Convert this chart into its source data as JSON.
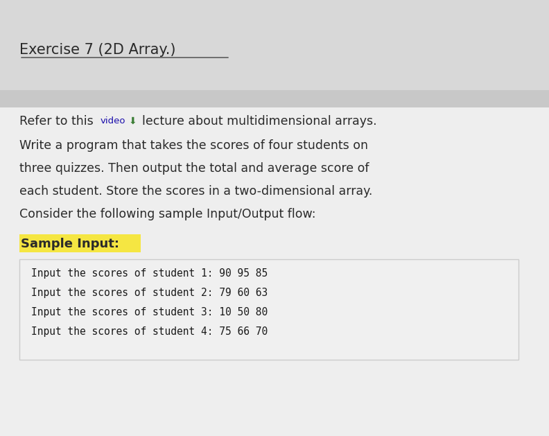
{
  "title": "Exercise 7 (2D Array.)",
  "bg_top_color": "#d8d8d8",
  "bg_main_color": "#e8e8e8",
  "content_bg": "#f2f2f2",
  "video_color": "#1a0dab",
  "icon_color": "#3a7d34",
  "sample_input_label": "Sample Input:",
  "sample_input_bg": "#f5e642",
  "code_lines": [
    "Input the scores of student 1: 90 95 85",
    "Input the scores of student 2: 79 60 63",
    "Input the scores of student 3: 10 50 80",
    "Input the scores of student 4: 75 66 70"
  ],
  "code_box_bg": "#f0f0f0",
  "code_box_border": "#cccccc",
  "title_color": "#2a2a2a",
  "text_color": "#2a2a2a",
  "code_text_color": "#1a1a1a",
  "title_fontsize": 15,
  "body_fontsize": 12.5,
  "code_fontsize": 10.5,
  "label_fontsize": 13
}
